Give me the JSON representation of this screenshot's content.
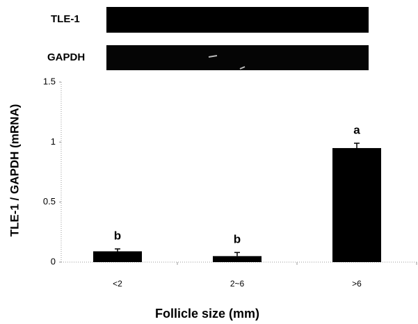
{
  "chart_data": {
    "type": "bar",
    "gel_labels": [
      "TLE-1",
      "GAPDH"
    ],
    "categories": [
      "<2",
      "2~6",
      ">6"
    ],
    "values": [
      0.09,
      0.05,
      0.95
    ],
    "errors": [
      0.02,
      0.03,
      0.04
    ],
    "letters": [
      "b",
      "b",
      "a"
    ],
    "color": "#000000",
    "ylim": [
      0,
      1.5
    ],
    "yticks": [
      0,
      0.5,
      1,
      1.5
    ],
    "xlabel": "Follicle size (mm)",
    "ylabel": "TLE-1 / GAPDH (mRNA)"
  }
}
